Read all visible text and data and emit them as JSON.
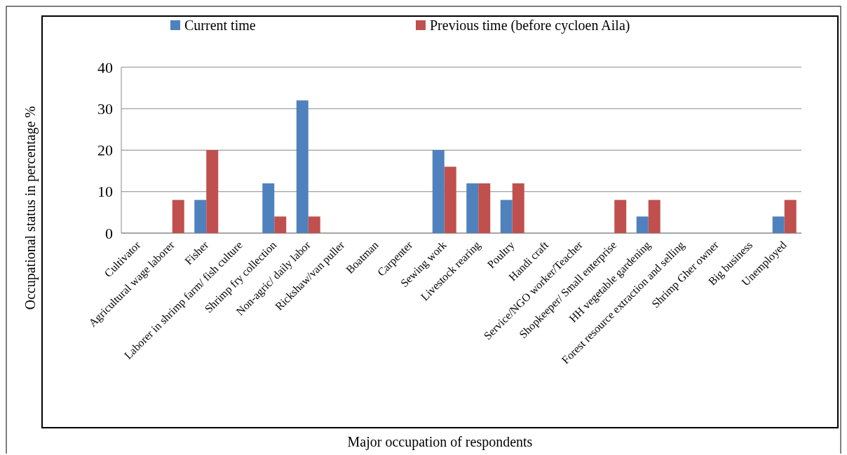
{
  "chart_data": {
    "type": "bar",
    "xlabel": "Major occupation of respondents",
    "ylabel": "Occupational status in percentage %",
    "categories": [
      "Cultivator",
      "Agricultural wage laborer",
      "Fisher",
      "Laborer in shrimp farm/ fish culture",
      "Shrimp fry collection",
      "Non-agric/ daily labor",
      "Rickshaw/van puller",
      "Boatman",
      "Carpenter",
      "Sewing work",
      "Livestock rearing",
      "Poultry",
      "Handi craft",
      "Service/NGO worker/Teacher",
      "Shopkeeper/ Small enterprise",
      "HH vegetable gardening",
      "Forest resource extraction and selling",
      "Shrimp Gher owner",
      "Big business",
      "Unemployed"
    ],
    "series": [
      {
        "name": "Current time",
        "color": "#4f81bd",
        "values": [
          0,
          0,
          8,
          0,
          12,
          32,
          0,
          0,
          0,
          20,
          12,
          8,
          0,
          0,
          0,
          4,
          0,
          0,
          0,
          4
        ]
      },
      {
        "name": "Previous time (before cycloen Aila)",
        "color": "#c0504d",
        "values": [
          0,
          8,
          20,
          0,
          4,
          4,
          0,
          0,
          0,
          16,
          12,
          12,
          0,
          0,
          8,
          8,
          0,
          0,
          0,
          8
        ]
      }
    ],
    "ylim": [
      0,
      40
    ],
    "yticks": [
      0,
      10,
      20,
      30,
      40
    ],
    "grid": "y",
    "legend": "top"
  }
}
